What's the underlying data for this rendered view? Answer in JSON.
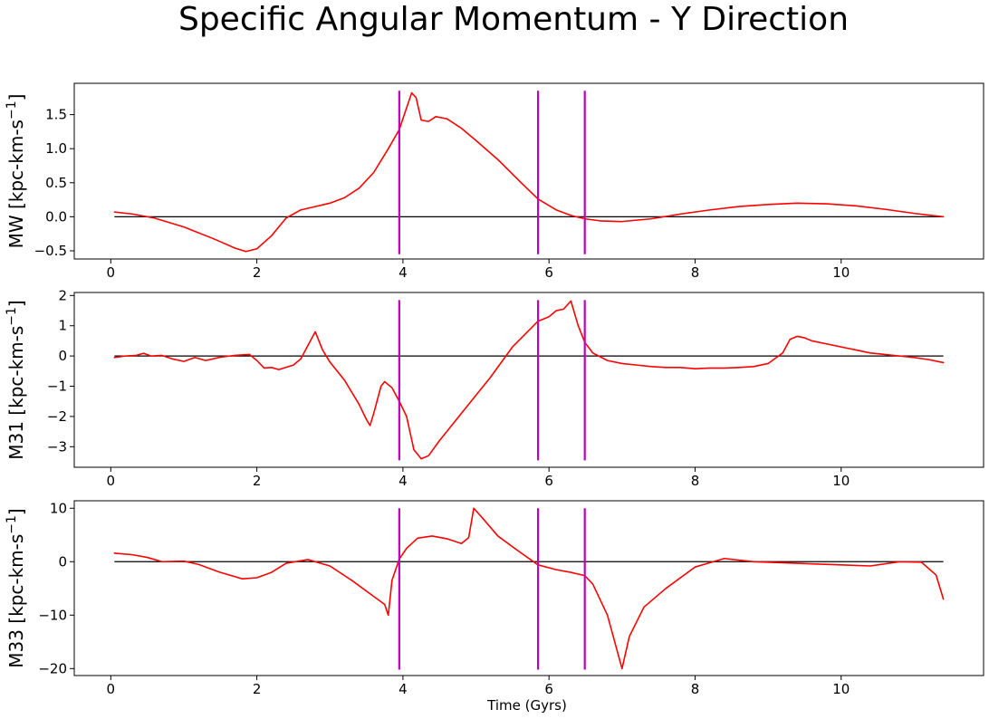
{
  "chart_data": {
    "type": "line",
    "title": "Specific Angular Momentum - Y Direction",
    "xlabel": "Time (Gyrs)",
    "colors": {
      "series": "#ff0000",
      "markers": "#bf00bf",
      "zero": "#000000"
    },
    "vertical_markers_x": [
      3.95,
      5.85,
      6.49
    ],
    "panels": [
      {
        "ylabel": "MW [kpc-km-s",
        "ylabel_exp": "−1",
        "ylabel_close": "]",
        "xlim": [
          -0.5,
          11.95
        ],
        "ylim": [
          -0.62,
          1.96
        ],
        "xticks": [
          0,
          2,
          4,
          6,
          8,
          10
        ],
        "xtick_labels": [
          "0",
          "2",
          "4",
          "6",
          "8",
          "10"
        ],
        "yticks": [
          -0.5,
          0.0,
          0.5,
          1.0,
          1.5
        ],
        "ytick_labels": [
          "−0.5",
          "0.0",
          "0.5",
          "1.0",
          "1.5"
        ],
        "marker_span": [
          -0.55,
          1.85
        ],
        "series": [
          {
            "x": [
              0.05,
              0.3,
              0.6,
              1.0,
              1.4,
              1.7,
              1.85,
              2.0,
              2.2,
              2.4,
              2.6,
              2.8,
              3.0,
              3.2,
              3.4,
              3.6,
              3.8,
              3.95,
              4.05,
              4.12,
              4.18,
              4.25,
              4.35,
              4.45,
              4.6,
              4.8,
              5.0,
              5.3,
              5.6,
              5.85,
              6.1,
              6.3,
              6.49,
              6.7,
              7.0,
              7.4,
              7.8,
              8.2,
              8.6,
              9.0,
              9.4,
              9.8,
              10.2,
              10.6,
              11.0,
              11.4
            ],
            "y": [
              0.07,
              0.04,
              -0.02,
              -0.15,
              -0.32,
              -0.46,
              -0.51,
              -0.47,
              -0.28,
              -0.02,
              0.1,
              0.15,
              0.2,
              0.28,
              0.42,
              0.65,
              1.0,
              1.28,
              1.6,
              1.82,
              1.75,
              1.42,
              1.4,
              1.47,
              1.44,
              1.3,
              1.12,
              0.84,
              0.52,
              0.26,
              0.1,
              0.02,
              -0.03,
              -0.06,
              -0.07,
              -0.03,
              0.04,
              0.1,
              0.15,
              0.18,
              0.2,
              0.19,
              0.16,
              0.11,
              0.05,
              0.0
            ]
          }
        ]
      },
      {
        "ylabel": "M31 [kpc-km-s",
        "ylabel_exp": "−1",
        "ylabel_close": "]",
        "xlim": [
          -0.5,
          11.95
        ],
        "ylim": [
          -3.68,
          2.1
        ],
        "xticks": [
          0,
          2,
          4,
          6,
          8,
          10
        ],
        "xtick_labels": [
          "0",
          "2",
          "4",
          "6",
          "8",
          "10"
        ],
        "yticks": [
          -3,
          -2,
          -1,
          0,
          1,
          2
        ],
        "ytick_labels": [
          "−3",
          "−2",
          "−1",
          "0",
          "1",
          "2"
        ],
        "marker_span": [
          -3.45,
          1.85
        ],
        "series": [
          {
            "x": [
              0.05,
              0.2,
              0.35,
              0.45,
              0.55,
              0.7,
              0.85,
              1.0,
              1.15,
              1.3,
              1.5,
              1.7,
              1.9,
              2.0,
              2.1,
              2.2,
              2.3,
              2.5,
              2.6,
              2.7,
              2.8,
              2.9,
              3.0,
              3.2,
              3.4,
              3.5,
              3.55,
              3.6,
              3.7,
              3.75,
              3.85,
              3.95,
              4.05,
              4.15,
              4.25,
              4.35,
              4.5,
              4.6,
              4.8,
              5.0,
              5.2,
              5.5,
              5.85,
              6.0,
              6.1,
              6.2,
              6.3,
              6.4,
              6.49,
              6.6,
              6.8,
              7.0,
              7.2,
              7.4,
              7.6,
              7.8,
              8.0,
              8.2,
              8.4,
              8.6,
              8.8,
              9.0,
              9.2,
              9.3,
              9.4,
              9.5,
              9.6,
              9.8,
              10.0,
              10.2,
              10.4,
              10.6,
              10.8,
              11.0,
              11.2,
              11.4
            ],
            "y": [
              -0.05,
              0.0,
              0.02,
              0.09,
              0.0,
              0.02,
              -0.1,
              -0.18,
              -0.05,
              -0.15,
              -0.04,
              0.02,
              0.05,
              -0.15,
              -0.4,
              -0.38,
              -0.45,
              -0.3,
              -0.1,
              0.35,
              0.8,
              0.2,
              -0.2,
              -0.8,
              -1.6,
              -2.1,
              -2.3,
              -1.9,
              -1.0,
              -0.85,
              -1.05,
              -1.5,
              -2.0,
              -3.1,
              -3.4,
              -3.3,
              -2.8,
              -2.5,
              -1.9,
              -1.3,
              -0.7,
              0.3,
              1.15,
              1.3,
              1.5,
              1.55,
              1.82,
              1.0,
              0.45,
              0.1,
              -0.15,
              -0.25,
              -0.3,
              -0.35,
              -0.38,
              -0.38,
              -0.42,
              -0.4,
              -0.4,
              -0.38,
              -0.35,
              -0.25,
              0.1,
              0.55,
              0.65,
              0.6,
              0.5,
              0.4,
              0.3,
              0.2,
              0.1,
              0.05,
              0.0,
              -0.05,
              -0.12,
              -0.22
            ]
          }
        ]
      },
      {
        "ylabel": "M33 [kpc-km-s",
        "ylabel_exp": "−1",
        "ylabel_close": "]",
        "xlim": [
          -0.5,
          11.95
        ],
        "ylim": [
          -21.3,
          11.4
        ],
        "xticks": [
          0,
          2,
          4,
          6,
          8,
          10
        ],
        "xtick_labels": [
          "0",
          "2",
          "4",
          "6",
          "8",
          "10"
        ],
        "yticks": [
          -20,
          -10,
          0,
          10
        ],
        "ytick_labels": [
          "−20",
          "−10",
          "0",
          "10"
        ],
        "marker_span": [
          -20.2,
          10.0
        ],
        "series": [
          {
            "x": [
              0.05,
              0.3,
              0.5,
              0.7,
              1.0,
              1.2,
              1.5,
              1.8,
              2.0,
              2.2,
              2.4,
              2.7,
              3.0,
              3.3,
              3.6,
              3.75,
              3.8,
              3.85,
              3.95,
              4.05,
              4.2,
              4.4,
              4.6,
              4.8,
              4.9,
              4.97,
              5.1,
              5.3,
              5.6,
              5.85,
              6.1,
              6.3,
              6.49,
              6.6,
              6.8,
              6.95,
              7.0,
              7.1,
              7.3,
              7.6,
              8.0,
              8.4,
              8.8,
              9.2,
              9.6,
              10.0,
              10.4,
              10.8,
              11.1,
              11.3,
              11.4
            ],
            "y": [
              1.6,
              1.3,
              0.8,
              0.0,
              0.1,
              -0.5,
              -2.0,
              -3.2,
              -3.0,
              -2.0,
              -0.3,
              0.4,
              -0.8,
              -3.5,
              -6.5,
              -8.0,
              -10.0,
              -3.5,
              0.5,
              2.5,
              4.4,
              4.8,
              4.3,
              3.4,
              4.5,
              10.0,
              8.0,
              4.8,
              1.8,
              -0.6,
              -1.5,
              -2.0,
              -2.6,
              -4.2,
              -10.0,
              -17.5,
              -20.0,
              -14.0,
              -8.5,
              -5.0,
              -1.0,
              0.6,
              0.0,
              -0.2,
              -0.4,
              -0.6,
              -0.8,
              0.0,
              -0.1,
              -2.5,
              -7.0
            ]
          }
        ]
      }
    ]
  }
}
